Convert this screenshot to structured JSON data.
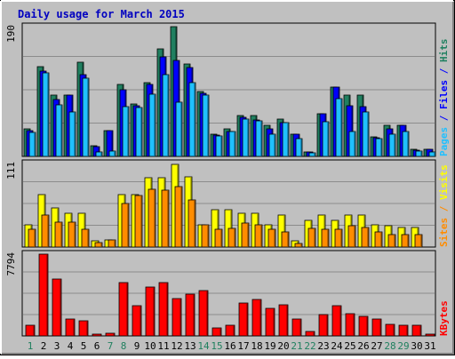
{
  "title": "Daily usage for March 2015",
  "colors": {
    "background": "#c0c0c0",
    "panel_border": "#000000",
    "title_color": "#0000c0",
    "hits": "#208060",
    "files": "#0000ff",
    "pages": "#20c0ff",
    "visits": "#ffff00",
    "sites": "#ff8c00",
    "kbytes": "#ff0000"
  },
  "chart_data": [
    {
      "type": "bar",
      "title": "",
      "y_max_label": "190",
      "ylim": [
        0,
        190
      ],
      "legend": [
        "Pages",
        "Files",
        "Hits"
      ],
      "legend_placement": "right",
      "categories": [
        "1",
        "2",
        "3",
        "4",
        "5",
        "6",
        "7",
        "8",
        "9",
        "10",
        "11",
        "12",
        "13",
        "14",
        "15",
        "16",
        "17",
        "18",
        "19",
        "20",
        "21",
        "22",
        "23",
        "24",
        "25",
        "26",
        "27",
        "28",
        "29",
        "30",
        "31"
      ],
      "series": [
        {
          "name": "Hits",
          "values": [
            40,
            132,
            90,
            90,
            138,
            15,
            38,
            105,
            77,
            108,
            158,
            190,
            135,
            95,
            32,
            40,
            60,
            60,
            45,
            55,
            33,
            7,
            63,
            102,
            90,
            90,
            28,
            46,
            45,
            10,
            11
          ]
        },
        {
          "name": "Files",
          "values": [
            38,
            125,
            83,
            90,
            120,
            14,
            38,
            98,
            74,
            106,
            146,
            140,
            130,
            93,
            31,
            37,
            57,
            53,
            40,
            50,
            32,
            6,
            63,
            102,
            74,
            73,
            27,
            40,
            45,
            9,
            11
          ]
        },
        {
          "name": "Pages",
          "values": [
            35,
            122,
            76,
            65,
            115,
            6,
            8,
            73,
            72,
            91,
            120,
            80,
            108,
            90,
            30,
            37,
            55,
            52,
            33,
            50,
            26,
            5,
            51,
            85,
            36,
            65,
            26,
            32,
            37,
            8,
            7
          ]
        }
      ]
    },
    {
      "type": "bar",
      "title": "",
      "y_max_label": "111",
      "ylim": [
        0,
        111
      ],
      "legend": [
        "Sites",
        "Visits"
      ],
      "legend_placement": "right",
      "categories": [
        "1",
        "2",
        "3",
        "4",
        "5",
        "6",
        "7",
        "8",
        "9",
        "10",
        "11",
        "12",
        "13",
        "14",
        "15",
        "16",
        "17",
        "18",
        "19",
        "20",
        "21",
        "22",
        "23",
        "24",
        "25",
        "26",
        "27",
        "28",
        "29",
        "30",
        "31"
      ],
      "series": [
        {
          "name": "Visits",
          "values": [
            30,
            70,
            52,
            45,
            45,
            8,
            10,
            70,
            70,
            92,
            92,
            110,
            93,
            30,
            50,
            50,
            45,
            45,
            30,
            42,
            8,
            35,
            43,
            35,
            43,
            42,
            30,
            28,
            26,
            26,
            0
          ]
        },
        {
          "name": "Sites",
          "values": [
            24,
            42,
            33,
            33,
            24,
            6,
            10,
            58,
            69,
            77,
            75,
            80,
            62,
            30,
            24,
            25,
            32,
            30,
            24,
            20,
            5,
            25,
            24,
            24,
            28,
            26,
            20,
            17,
            17,
            17,
            0
          ]
        }
      ]
    },
    {
      "type": "bar",
      "title": "",
      "y_max_label": "7794",
      "ylim": [
        0,
        7794
      ],
      "legend": [
        "KBytes"
      ],
      "legend_placement": "right",
      "categories": [
        "1",
        "2",
        "3",
        "4",
        "5",
        "6",
        "7",
        "8",
        "9",
        "10",
        "11",
        "12",
        "13",
        "14",
        "15",
        "16",
        "17",
        "18",
        "19",
        "20",
        "21",
        "22",
        "23",
        "24",
        "25",
        "26",
        "27",
        "28",
        "29",
        "30",
        "31"
      ],
      "series": [
        {
          "name": "KBytes",
          "values": [
            1050,
            7794,
            5460,
            1570,
            1430,
            190,
            290,
            5110,
            2920,
            4640,
            5080,
            3560,
            3940,
            4290,
            740,
            1000,
            3150,
            3490,
            2630,
            2980,
            1590,
            440,
            2040,
            2920,
            2080,
            1890,
            1580,
            1070,
            980,
            1040,
            150
          ]
        }
      ]
    }
  ],
  "day_labels": [
    "1",
    "2",
    "3",
    "4",
    "5",
    "6",
    "7",
    "8",
    "9",
    "10",
    "11",
    "12",
    "13",
    "14",
    "15",
    "16",
    "17",
    "18",
    "19",
    "20",
    "21",
    "22",
    "23",
    "24",
    "25",
    "26",
    "27",
    "28",
    "29",
    "30",
    "31"
  ],
  "weekend_days": [
    "1",
    "7",
    "8",
    "14",
    "15",
    "21",
    "22",
    "28",
    "29"
  ]
}
